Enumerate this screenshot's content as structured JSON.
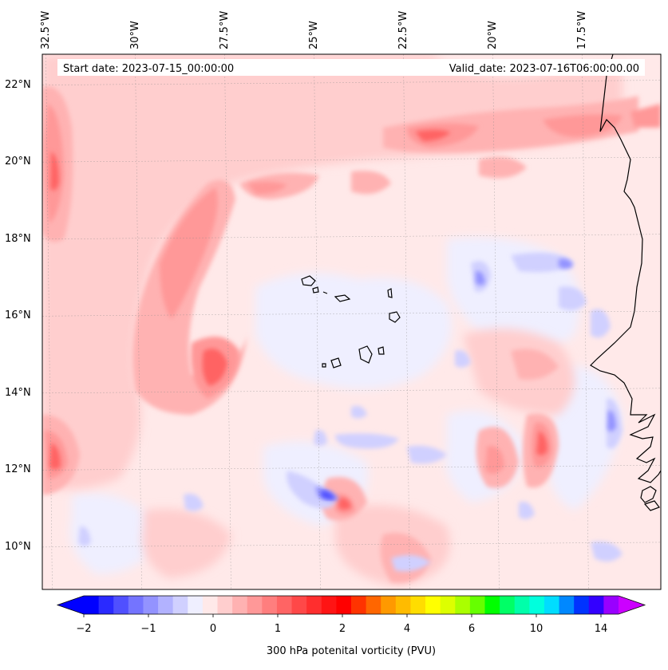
{
  "map": {
    "start_label": "Start date: 2023-07-15_00:00:00",
    "valid_label": "Valid_date: 2023-07-16T06:00:00.00",
    "lon_labels": [
      "32.5°W",
      "30°W",
      "27.5°W",
      "25°W",
      "22.5°W",
      "20°W",
      "17.5°W"
    ],
    "lat_labels": [
      "22°N",
      "20°N",
      "18°N",
      "16°N",
      "14°N",
      "12°N",
      "10°N"
    ],
    "extent": {
      "lon_min": -32.6,
      "lon_max": -15.3,
      "lat_min": 8.9,
      "lat_max": 22.8
    }
  },
  "colorbar": {
    "label": "300 hPa potenital vorticity (PVU)",
    "tick_labels": [
      "−2",
      "−1",
      "0",
      "1",
      "2",
      "4",
      "6",
      "10",
      "14"
    ],
    "colors": [
      "#0000ff",
      "#2a2aff",
      "#5050ff",
      "#7474ff",
      "#9393ff",
      "#b2b2ff",
      "#d0d0ff",
      "#efefff",
      "#ffe9e9",
      "#ffcece",
      "#ffb2b2",
      "#ff9898",
      "#ff7e7e",
      "#ff6464",
      "#ff4848",
      "#ff2e2e",
      "#ff1414",
      "#ff0000",
      "#ff3300",
      "#ff6600",
      "#ff9900",
      "#ffbb00",
      "#ffdd00",
      "#ffff00",
      "#ddff00",
      "#aaff00",
      "#66ff00",
      "#00ff00",
      "#00ff66",
      "#00ffaa",
      "#00ffdd",
      "#00ddff",
      "#0088ff",
      "#0033ff",
      "#3300ff",
      "#9900ff"
    ],
    "under_color": "#0000ff",
    "over_color": "#cc00ff"
  }
}
